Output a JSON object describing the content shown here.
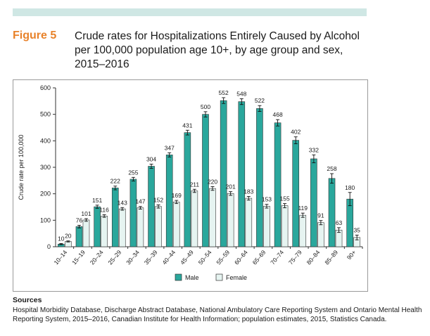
{
  "figure": {
    "label": "Figure 5",
    "title": "Crude rates for Hospitalizations Entirely Caused by Alcohol per 100,000 population age 10+, by age group and sex, 2015–2016"
  },
  "sources": {
    "heading": "Sources",
    "text": "Hospital Morbidity Database, Discharge Abstract Database, National Ambulatory Care Reporting System and Ontario Mental Health Reporting System, 2015–2016, Canadian Institute for Health Information; population estimates, 2015, Statistics Canada."
  },
  "colors": {
    "male": "#2aa79c",
    "female": "#e6f4f1",
    "bar_edge": "#333333",
    "band": "#cfe7e4",
    "label_accent": "#e8822a"
  },
  "chart_data": {
    "type": "bar",
    "title": "Crude rates for Hospitalizations Entirely Caused by Alcohol per 100,000 population age 10+, by age group and sex, 2015–2016",
    "xlabel": "",
    "ylabel": "Crude rate per 100,000",
    "ylim": [
      0,
      600
    ],
    "yticks": [
      0,
      100,
      200,
      300,
      400,
      500,
      600
    ],
    "grid": false,
    "legend": "bottom-center",
    "error_bars": true,
    "categories": [
      "10–14",
      "15–19",
      "20–24",
      "25–29",
      "30–34",
      "35–39",
      "40–44",
      "45–49",
      "50–54",
      "55–59",
      "60–64",
      "65–69",
      "70–74",
      "75–79",
      "80–84",
      "85–89",
      "90+"
    ],
    "series": [
      {
        "name": "Male",
        "values": [
          10,
          76,
          151,
          222,
          255,
          304,
          347,
          431,
          500,
          552,
          548,
          522,
          468,
          402,
          332,
          258,
          180
        ],
        "errors": [
          2,
          5,
          6,
          7,
          7,
          8,
          8,
          9,
          10,
          11,
          11,
          11,
          12,
          13,
          15,
          18,
          25
        ]
      },
      {
        "name": "Female",
        "values": [
          20,
          101,
          116,
          143,
          147,
          152,
          169,
          211,
          220,
          201,
          183,
          153,
          155,
          119,
          91,
          63,
          35
        ],
        "errors": [
          2,
          5,
          5,
          5,
          5,
          6,
          6,
          6,
          7,
          7,
          7,
          7,
          8,
          8,
          8,
          9,
          9
        ]
      }
    ]
  }
}
